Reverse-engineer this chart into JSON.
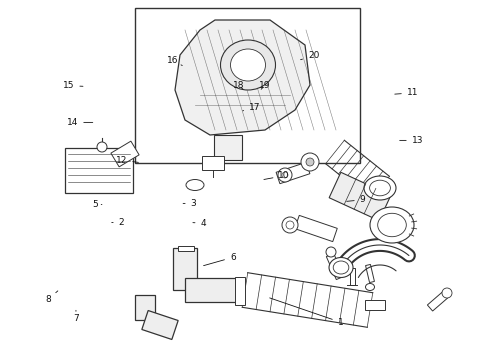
{
  "background_color": "#ffffff",
  "line_color": "#333333",
  "text_color": "#111111",
  "figsize": [
    4.9,
    3.6
  ],
  "dpi": 100,
  "label_positions": {
    "1": [
      0.695,
      0.895,
      0.545,
      0.825
    ],
    "6": [
      0.475,
      0.715,
      0.41,
      0.74
    ],
    "7": [
      0.155,
      0.885,
      0.155,
      0.862
    ],
    "8": [
      0.098,
      0.832,
      0.118,
      0.808
    ],
    "2": [
      0.248,
      0.618,
      0.228,
      0.618
    ],
    "4": [
      0.415,
      0.62,
      0.388,
      0.618
    ],
    "5": [
      0.195,
      0.568,
      0.208,
      0.568
    ],
    "3": [
      0.395,
      0.565,
      0.368,
      0.565
    ],
    "9": [
      0.74,
      0.555,
      0.702,
      0.56
    ],
    "10": [
      0.58,
      0.488,
      0.533,
      0.5
    ],
    "12": [
      0.248,
      0.445,
      0.288,
      0.452
    ],
    "13": [
      0.852,
      0.39,
      0.81,
      0.39
    ],
    "14": [
      0.148,
      0.34,
      0.195,
      0.34
    ],
    "17": [
      0.52,
      0.298,
      0.49,
      0.31
    ],
    "18": [
      0.488,
      0.238,
      0.496,
      0.248
    ],
    "19": [
      0.54,
      0.238,
      0.533,
      0.248
    ],
    "11": [
      0.842,
      0.258,
      0.8,
      0.262
    ],
    "15": [
      0.14,
      0.238,
      0.175,
      0.24
    ],
    "16": [
      0.352,
      0.168,
      0.372,
      0.182
    ],
    "20": [
      0.64,
      0.155,
      0.608,
      0.168
    ]
  }
}
